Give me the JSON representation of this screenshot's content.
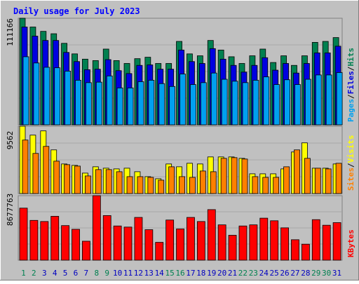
{
  "chart_data": {
    "type": "bar",
    "title": "Daily usage for July 2023",
    "categories": [
      "1",
      "2",
      "3",
      "4",
      "5",
      "6",
      "7",
      "8",
      "9",
      "10",
      "11",
      "12",
      "13",
      "14",
      "15",
      "16",
      "17",
      "18",
      "19",
      "20",
      "21",
      "22",
      "23",
      "24",
      "25",
      "26",
      "27",
      "28",
      "29",
      "30",
      "31"
    ],
    "weekend_days": [
      "1",
      "2",
      "8",
      "9",
      "15",
      "16",
      "22",
      "23",
      "29",
      "30"
    ],
    "panels": [
      {
        "id": "hits-files-pages",
        "max_label": "111166",
        "ylim": [
          0,
          111166
        ],
        "grid": true,
        "legend_position": "right",
        "legend": [
          {
            "name": "Pages",
            "color": "#00a0f0"
          },
          {
            "name": "Files",
            "color": "#0000e0"
          },
          {
            "name": "Hits",
            "color": "#008050"
          }
        ],
        "series": [
          {
            "name": "Hits",
            "color": "#008050",
            "values": [
              111166,
              102000,
              97500,
              95000,
              85000,
              74000,
              68500,
              67000,
              79000,
              67000,
              64000,
              69000,
              70500,
              64000,
              64000,
              87000,
              74000,
              72000,
              88000,
              78000,
              71000,
              64000,
              72000,
              79000,
              65000,
              72000,
              62000,
              72000,
              86000,
              87000,
              91000
            ]
          },
          {
            "name": "Files",
            "color": "#0000e0",
            "values": [
              102000,
              92500,
              88000,
              88000,
              75500,
              66000,
              57500,
              58000,
              68000,
              56500,
              53500,
              62000,
              62500,
              58000,
              58000,
              78000,
              66000,
              64000,
              79500,
              68500,
              62000,
              55000,
              62000,
              70000,
              57000,
              64000,
              54000,
              64000,
              75000,
              75000,
              82000
            ]
          },
          {
            "name": "Pages",
            "color": "#00a0f0",
            "values": [
              71000,
              64500,
              60000,
              59500,
              56000,
              46500,
              44000,
              44500,
              51000,
              38500,
              38500,
              45000,
              46500,
              43000,
              40000,
              53000,
              42000,
              44000,
              54000,
              47500,
              45500,
              44000,
              46500,
              50000,
              42000,
              47000,
              42000,
              47500,
              52000,
              52000,
              54500
            ]
          }
        ]
      },
      {
        "id": "visits-sites",
        "max_label": "9562",
        "ylim": [
          0,
          9562
        ],
        "grid": true,
        "legend_position": "right",
        "legend": [
          {
            "name": "Sites",
            "color": "#ff8000"
          },
          {
            "name": "Visits",
            "color": "#ffff00"
          }
        ],
        "series": [
          {
            "name": "Visits",
            "color": "#ffff00",
            "values": [
              9562,
              8300,
              8900,
              6200,
              4200,
              4000,
              2900,
              3800,
              3600,
              3500,
              3600,
              3100,
              2400,
              2100,
              4200,
              3800,
              4300,
              4200,
              5200,
              5200,
              5200,
              5000,
              2800,
              2800,
              2800,
              3500,
              5900,
              7200,
              3600,
              3600,
              4200
            ]
          },
          {
            "name": "Sites",
            "color": "#ff8000",
            "values": [
              7600,
              5700,
              6700,
              4600,
              4100,
              3900,
              2500,
              3400,
              3400,
              3100,
              2400,
              2400,
              2300,
              1900,
              3800,
              2400,
              2300,
              3200,
              3100,
              5000,
              5100,
              4900,
              2400,
              2300,
              2300,
              3800,
              6200,
              5000,
              3600,
              3500,
              4300
            ]
          }
        ]
      },
      {
        "id": "kbytes",
        "max_label": "8677763",
        "ylim": [
          0,
          8677763
        ],
        "grid": true,
        "legend_position": "right",
        "legend": [
          {
            "name": "KBytes",
            "color": "#ff0000"
          }
        ],
        "series": [
          {
            "name": "KBytes",
            "color": "#ff0000",
            "values": [
              7000000,
              5350000,
              5200000,
              5900000,
              4650000,
              4150000,
              2550000,
              8677763,
              6000000,
              4600000,
              4450000,
              5750000,
              4100000,
              2400000,
              5400000,
              4200000,
              5750000,
              5200000,
              6800000,
              4750000,
              3350000,
              4600000,
              4750000,
              5650000,
              5300000,
              4350000,
              2750000,
              2150000,
              5450000,
              4700000,
              5050000
            ]
          }
        ]
      }
    ]
  },
  "colors": {
    "background": "#c0c0c0",
    "title": "#0000ff",
    "weekday_label": "#0000c0",
    "weekend_label": "#008050",
    "axis_label": "#000000"
  }
}
